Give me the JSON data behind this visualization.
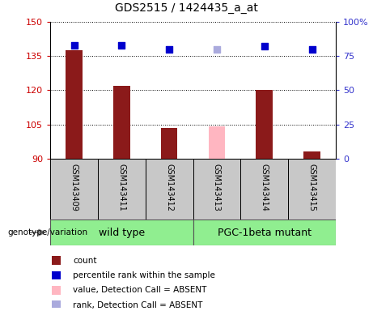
{
  "title": "GDS2515 / 1424435_a_at",
  "samples": [
    "GSM143409",
    "GSM143411",
    "GSM143412",
    "GSM143413",
    "GSM143414",
    "GSM143415"
  ],
  "count_values": [
    137.5,
    122.0,
    103.5,
    null,
    120.0,
    93.0
  ],
  "count_absent_values": [
    null,
    null,
    null,
    104.0,
    null,
    null
  ],
  "percentile_values": [
    83.0,
    83.0,
    80.0,
    null,
    82.0,
    80.0
  ],
  "percentile_absent_values": [
    null,
    null,
    null,
    80.0,
    null,
    null
  ],
  "ylim_left": [
    90,
    150
  ],
  "ylim_right": [
    0,
    100
  ],
  "yticks_left": [
    90,
    105,
    120,
    135,
    150
  ],
  "ytick_labels_left": [
    "90",
    "105",
    "120",
    "135",
    "150"
  ],
  "yticks_right": [
    0,
    25,
    50,
    75,
    100
  ],
  "ytick_labels_right": [
    "0",
    "25",
    "50",
    "75",
    "100%"
  ],
  "bar_color": "#8B1A1A",
  "bar_absent_color": "#FFB6C1",
  "square_color": "#0000CD",
  "square_absent_color": "#AAAADD",
  "left_tick_color": "#CC0000",
  "right_tick_color": "#3333CC",
  "wild_type_label": "wild type",
  "mutant_label": "PGC-1beta mutant",
  "wild_type_color": "#90EE90",
  "mutant_color": "#90EE90",
  "genotype_label": "genotype/variation",
  "legend_items": [
    {
      "label": "count",
      "color": "#8B1A1A"
    },
    {
      "label": "percentile rank within the sample",
      "color": "#0000CD"
    },
    {
      "label": "value, Detection Call = ABSENT",
      "color": "#FFB6C1"
    },
    {
      "label": "rank, Detection Call = ABSENT",
      "color": "#AAAADD"
    }
  ],
  "bar_width": 0.35,
  "square_size": 30
}
